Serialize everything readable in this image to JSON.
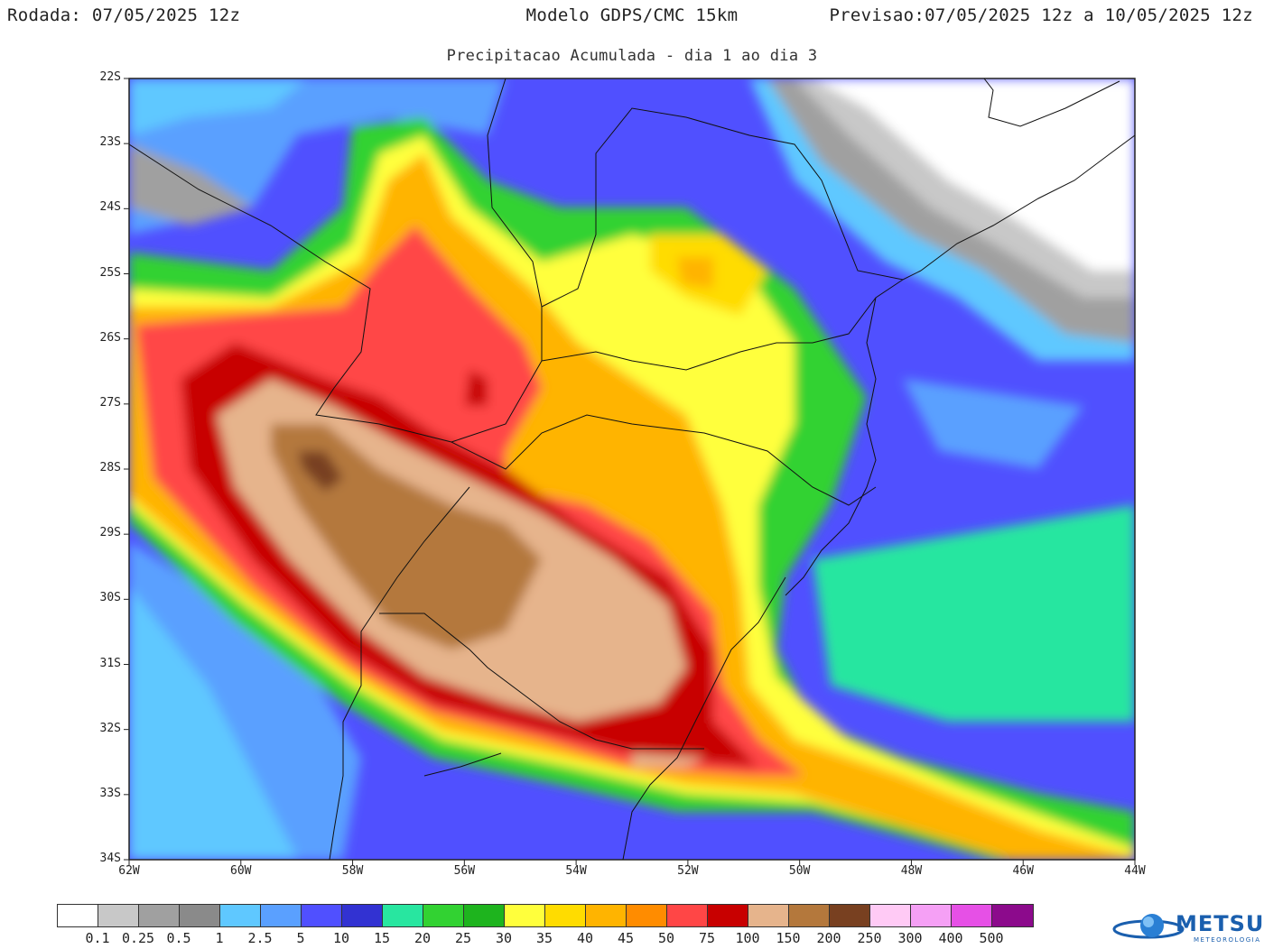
{
  "header": {
    "run": "Rodada: 07/05/2025 12z",
    "model": "Modelo GDPS/CMC 15km",
    "forecast": "Previsao:07/05/2025 12z a 10/05/2025 12z",
    "subtitle": "Precipitacao Acumulada - dia 1 ao dia 3"
  },
  "map": {
    "lat_labels": [
      "22S",
      "23S",
      "24S",
      "25S",
      "26S",
      "27S",
      "28S",
      "29S",
      "30S",
      "31S",
      "32S",
      "33S",
      "34S"
    ],
    "lon_labels": [
      "62W",
      "60W",
      "58W",
      "56W",
      "54W",
      "52W",
      "50W",
      "48W",
      "46W",
      "44W"
    ],
    "lat_range": [
      -34,
      -22
    ],
    "lon_range": [
      -62,
      -44
    ]
  },
  "legend": {
    "labels": [
      "0.1",
      "0.25",
      "0.5",
      "1",
      "2.5",
      "5",
      "10",
      "15",
      "20",
      "25",
      "30",
      "35",
      "40",
      "45",
      "50",
      "75",
      "100",
      "150",
      "200",
      "250",
      "300",
      "400",
      "500"
    ],
    "colors": [
      "#ffffff",
      "#c8c8c8",
      "#a0a0a0",
      "#8a8a8a",
      "#5fc8ff",
      "#5aa0ff",
      "#5050ff",
      "#3232d2",
      "#28e6a0",
      "#32d232",
      "#1eb41e",
      "#ffff3c",
      "#ffdc00",
      "#ffb400",
      "#ff8c00",
      "#ff4646",
      "#c80000",
      "#e6b48c",
      "#b4783c",
      "#784020",
      "#ffcaf5",
      "#f5a0f5",
      "#e650e6",
      "#8c0a8c"
    ],
    "unit_marker": ""
  },
  "logo": {
    "name": "METSUL",
    "sub": "METEOROLOGIA"
  }
}
